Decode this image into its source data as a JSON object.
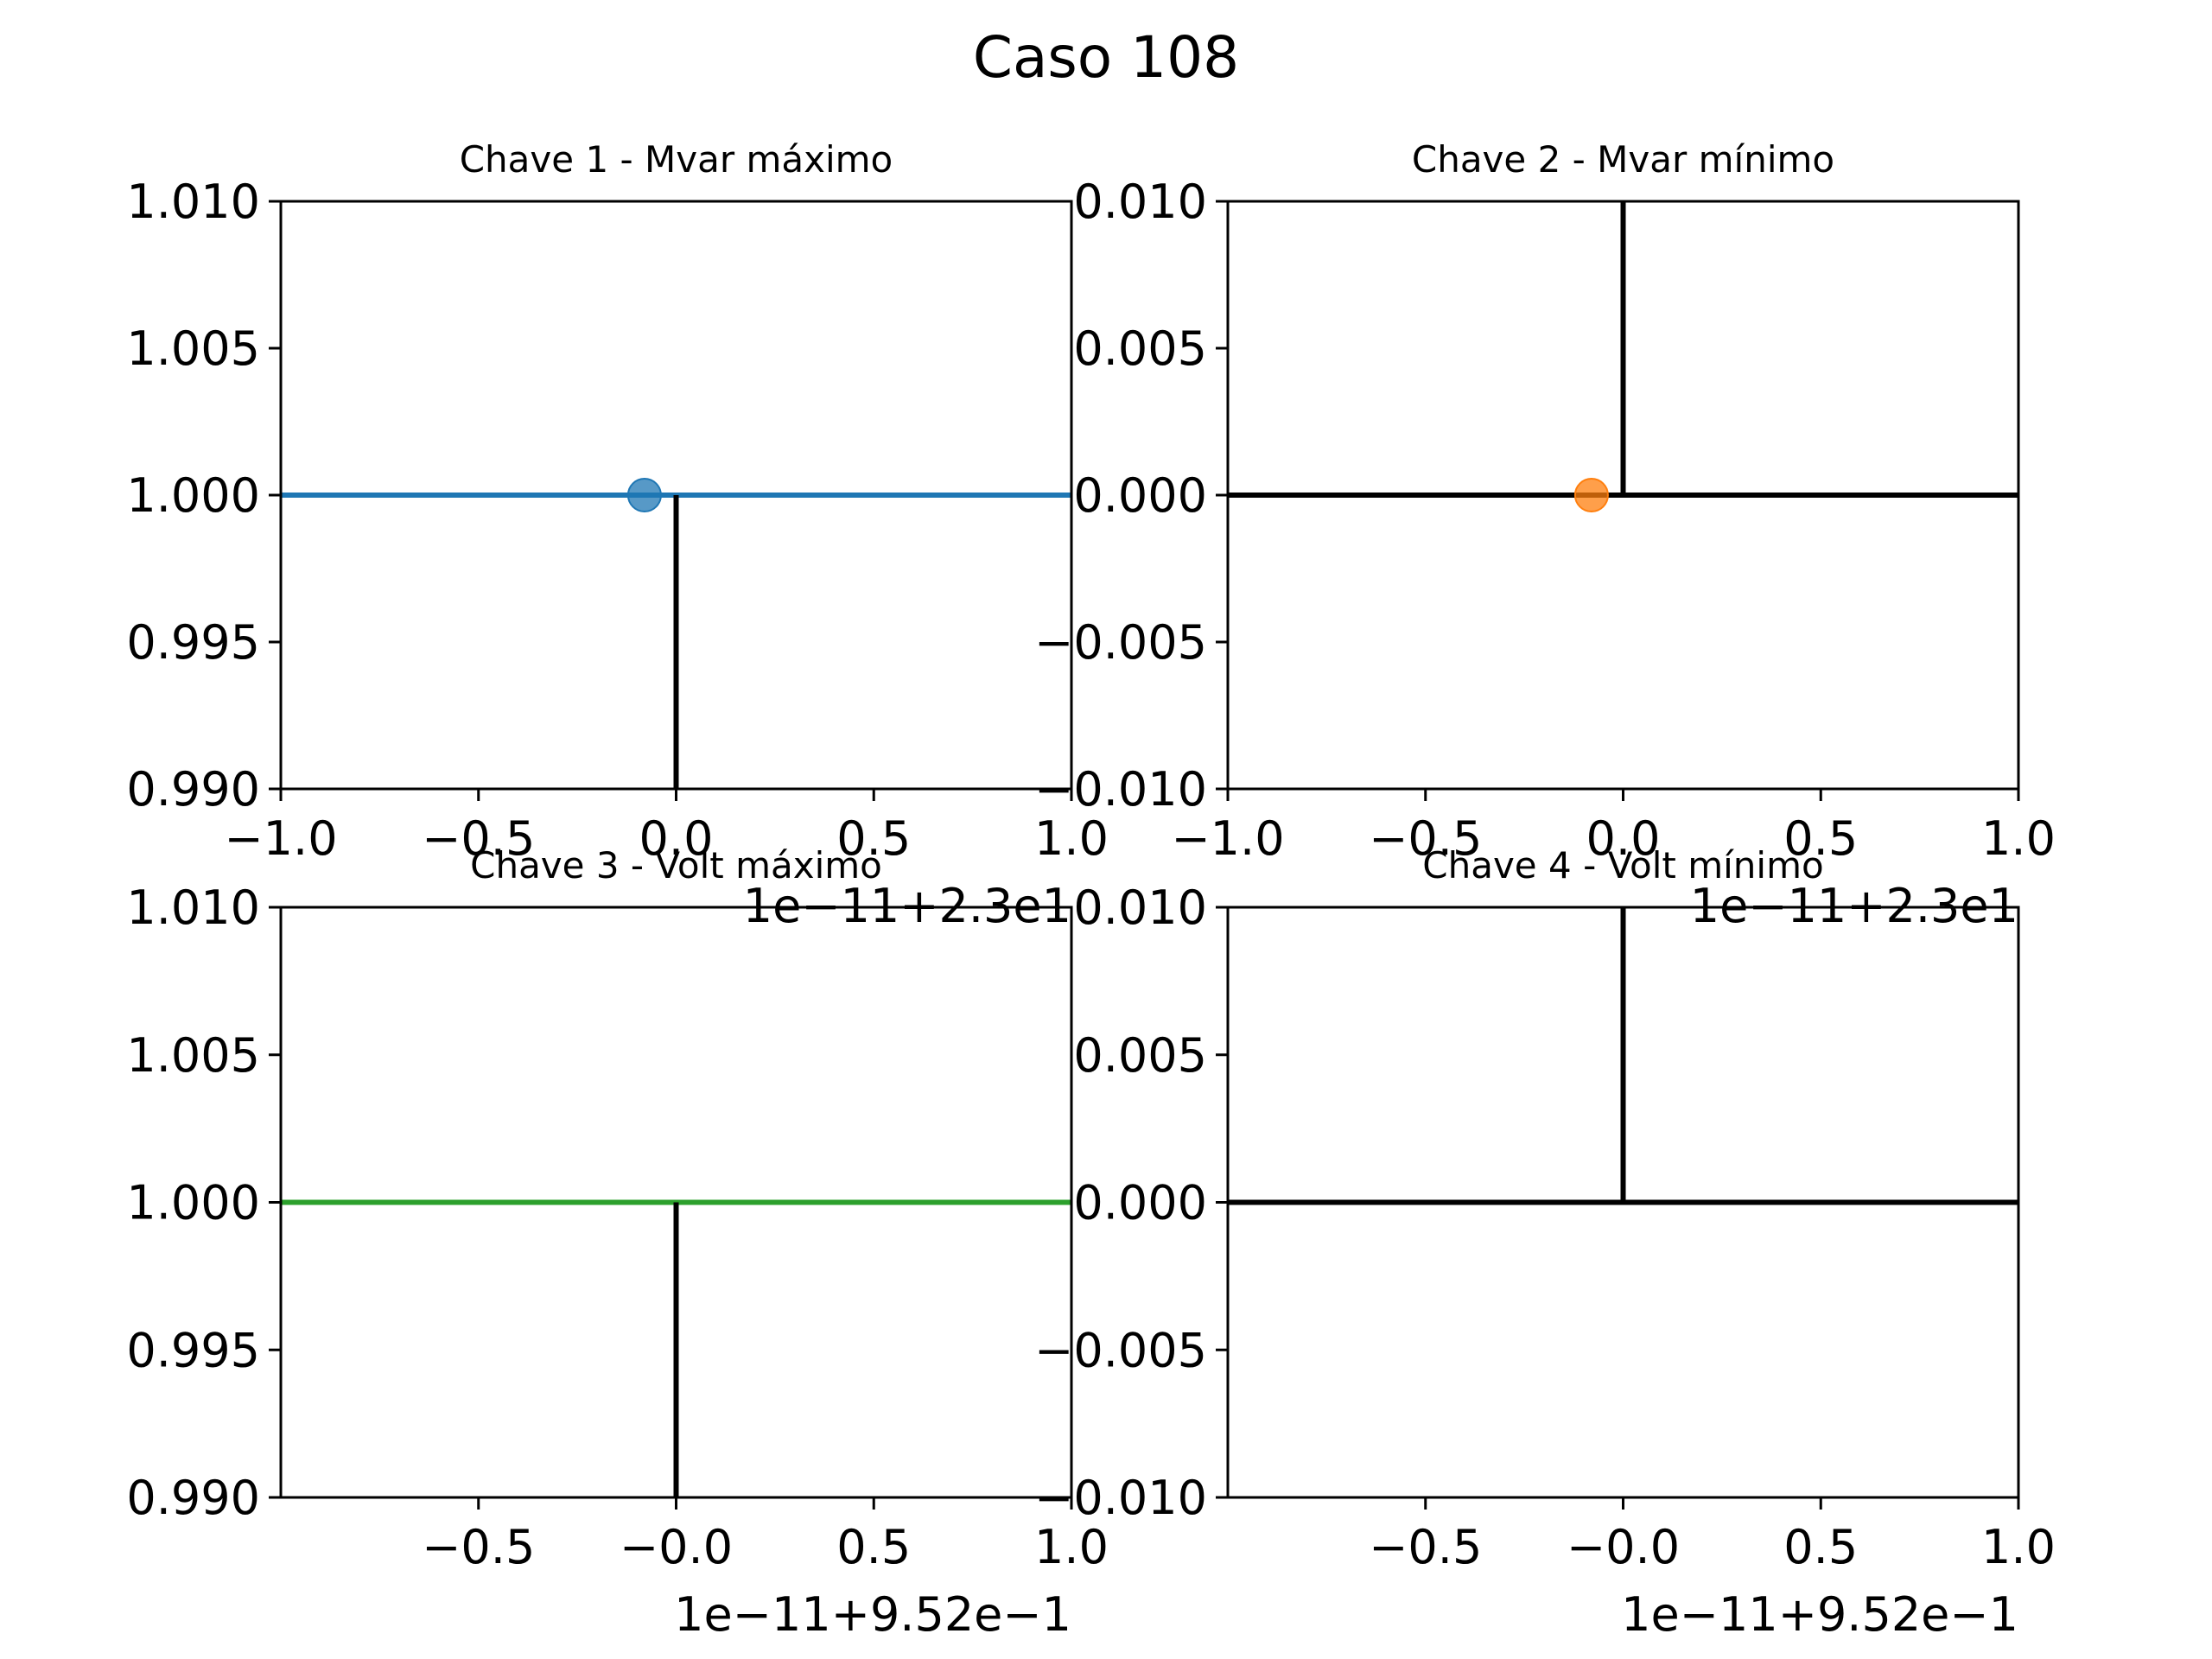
{
  "figure": {
    "title": "Caso 108"
  },
  "colors": {
    "blue": "#1f77b4",
    "orange": "#ff7f0e",
    "green": "#2ca02c",
    "black": "#000000",
    "frame": "#000000"
  },
  "chart_data": [
    {
      "type": "line",
      "title": "Chave 1 - Mvar máximo",
      "xlim": [
        -1.0,
        1.0
      ],
      "ylim": [
        0.99,
        1.01
      ],
      "xticks": [
        "−1.0",
        "−0.5",
        "0.0",
        "0.5",
        "1.0"
      ],
      "xtick_values": [
        -1.0,
        -0.5,
        0.0,
        0.5,
        1.0
      ],
      "yticks": [
        "0.990",
        "0.995",
        "1.000",
        "1.005",
        "1.010"
      ],
      "ytick_values": [
        0.99,
        0.995,
        1.0,
        1.005,
        1.01
      ],
      "x_offset_label": "1e−11+2.3e1",
      "hline": {
        "y": 1.0,
        "color": "#1f77b4"
      },
      "vline": {
        "x": 0.0,
        "y_from": 0.99,
        "y_to": 1.0,
        "color": "#000000"
      },
      "points": [
        {
          "x": -0.08,
          "y": 1.0,
          "color": "#1f77b4"
        }
      ]
    },
    {
      "type": "line",
      "title": "Chave 2 - Mvar mínimo",
      "xlim": [
        -1.0,
        1.0
      ],
      "ylim": [
        -0.01,
        0.01
      ],
      "xticks": [
        "−1.0",
        "−0.5",
        "0.0",
        "0.5",
        "1.0"
      ],
      "xtick_values": [
        -1.0,
        -0.5,
        0.0,
        0.5,
        1.0
      ],
      "yticks": [
        "−0.010",
        "−0.005",
        "0.000",
        "0.005",
        "0.010"
      ],
      "ytick_values": [
        -0.01,
        -0.005,
        0.0,
        0.005,
        0.01
      ],
      "x_offset_label": "1e−11+2.3e1",
      "hline": {
        "y": 0.0,
        "color": "#000000"
      },
      "vline": {
        "x": 0.0,
        "y_from": 0.0,
        "y_to": 0.01,
        "color": "#000000"
      },
      "points": [
        {
          "x": -0.08,
          "y": 0.0,
          "color": "#ff7f0e"
        }
      ]
    },
    {
      "type": "line",
      "title": "Chave 3 - Volt máximo",
      "xlim": [
        -1.0,
        1.0
      ],
      "ylim": [
        0.99,
        1.01
      ],
      "xticks": [
        "−0.5",
        "−0.0",
        "0.5",
        "1.0"
      ],
      "xtick_values": [
        -0.5,
        0.0,
        0.5,
        1.0
      ],
      "yticks": [
        "0.990",
        "0.995",
        "1.000",
        "1.005",
        "1.010"
      ],
      "ytick_values": [
        0.99,
        0.995,
        1.0,
        1.005,
        1.01
      ],
      "x_offset_label": "1e−11+9.52e−1",
      "hline": {
        "y": 1.0,
        "color": "#2ca02c"
      },
      "vline": {
        "x": 0.0,
        "y_from": 0.99,
        "y_to": 1.0,
        "color": "#000000"
      },
      "points": []
    },
    {
      "type": "line",
      "title": "Chave 4 - Volt mínimo",
      "xlim": [
        -1.0,
        1.0
      ],
      "ylim": [
        -0.01,
        0.01
      ],
      "xticks": [
        "−0.5",
        "−0.0",
        "0.5",
        "1.0"
      ],
      "xtick_values": [
        -0.5,
        0.0,
        0.5,
        1.0
      ],
      "yticks": [
        "−0.010",
        "−0.005",
        "0.000",
        "0.005",
        "0.010"
      ],
      "ytick_values": [
        -0.01,
        -0.005,
        0.0,
        0.005,
        0.01
      ],
      "x_offset_label": "1e−11+9.52e−1",
      "hline": {
        "y": 0.0,
        "color": "#000000"
      },
      "vline": {
        "x": 0.0,
        "y_from": 0.0,
        "y_to": 0.01,
        "color": "#000000"
      },
      "points": []
    }
  ]
}
